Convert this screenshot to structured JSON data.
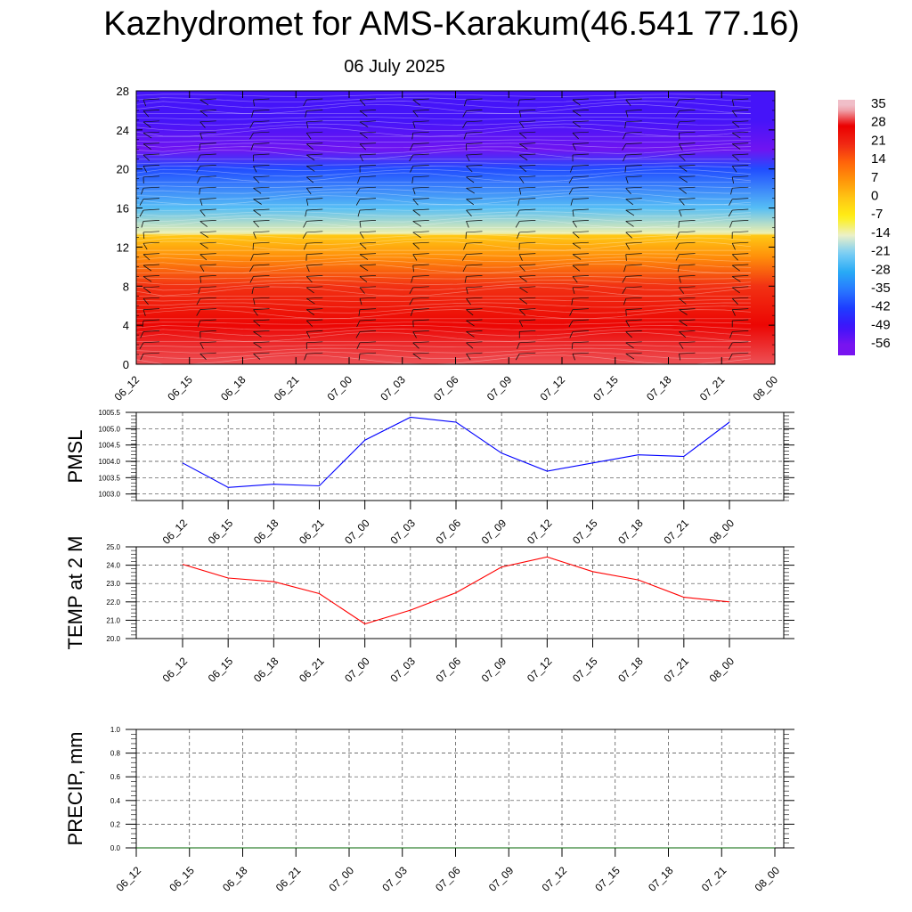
{
  "header": {
    "title": "Kazhydromet for AMS-Karakum(46.541 77.16)",
    "date": "06 July 2025"
  },
  "time_labels": [
    "06_12",
    "06_15",
    "06_18",
    "06_21",
    "07_00",
    "07_03",
    "07_06",
    "07_09",
    "07_12",
    "07_15",
    "07_18",
    "07_21",
    "08_00"
  ],
  "chart_data": [
    {
      "type": "heatmap",
      "title": "",
      "x": [
        "06_12",
        "06_15",
        "06_18",
        "06_21",
        "07_00",
        "07_03",
        "07_06",
        "07_09",
        "07_12",
        "07_15",
        "07_18",
        "07_21",
        "08_00"
      ],
      "ylim": [
        0,
        28
      ],
      "y_ticks": [
        0,
        4,
        8,
        12,
        16,
        20,
        24,
        28
      ],
      "ylabel": "",
      "description_bands": [
        {
          "y": 0,
          "value": 31
        },
        {
          "y": 4,
          "value": 27
        },
        {
          "y": 8,
          "value": 20
        },
        {
          "y": 11,
          "value": 8
        },
        {
          "y": 13.2,
          "value": 0
        },
        {
          "y": 13.4,
          "value": -13
        },
        {
          "y": 16,
          "value": -24
        },
        {
          "y": 20,
          "value": -40
        },
        {
          "y": 22,
          "value": -55
        },
        {
          "y": 25,
          "value": -50
        },
        {
          "y": 28,
          "value": -50
        }
      ],
      "wind_barbs": true,
      "colorbar": {
        "labels": [
          "35",
          "28",
          "21",
          "14",
          "7",
          "0",
          "-7",
          "-14",
          "-21",
          "-28",
          "-35",
          "-42",
          "-49",
          "-56"
        ],
        "values": [
          35,
          28,
          21,
          14,
          7,
          0,
          -7,
          -14,
          -21,
          -28,
          -35,
          -42,
          -49,
          -56
        ]
      }
    },
    {
      "type": "line",
      "ylabel": "PMSL",
      "ylim": [
        1002.8,
        1005.5
      ],
      "y_ticks": [
        "1003.0",
        "1003.5",
        "1004.0",
        "1004.5",
        "1005.0",
        "1005.5"
      ],
      "x": [
        "06_12",
        "06_15",
        "06_18",
        "06_21",
        "07_00",
        "07_03",
        "07_06",
        "07_09",
        "07_12",
        "07_15",
        "07_18",
        "07_21",
        "08_00"
      ],
      "series": [
        {
          "values": [
            1003.95,
            1003.2,
            1003.3,
            1003.25,
            1004.65,
            1005.35,
            1005.2,
            1004.25,
            1003.7,
            1003.95,
            1004.2,
            1004.15,
            1005.2
          ],
          "color": "#0000ff"
        }
      ],
      "grid": true
    },
    {
      "type": "line",
      "ylabel": "TEMP at 2 M",
      "ylim": [
        20.0,
        25.0
      ],
      "y_ticks": [
        "20.0",
        "21.0",
        "22.0",
        "23.0",
        "24.0",
        "25.0"
      ],
      "x": [
        "06_12",
        "06_15",
        "06_18",
        "06_21",
        "07_00",
        "07_03",
        "07_06",
        "07_09",
        "07_12",
        "07_15",
        "07_18",
        "07_21",
        "08_00"
      ],
      "series": [
        {
          "values": [
            24.05,
            23.3,
            23.1,
            22.45,
            20.8,
            21.55,
            22.5,
            23.9,
            24.45,
            23.65,
            23.2,
            22.25,
            22.0
          ],
          "color": "#ff0000"
        }
      ],
      "grid": true
    },
    {
      "type": "line",
      "ylabel": "PRECIP, mm",
      "ylim": [
        0.0,
        1.0
      ],
      "y_ticks": [
        "0.0",
        "0.2",
        "0.4",
        "0.6",
        "0.8",
        "1.0"
      ],
      "x": [
        "06_12",
        "06_15",
        "06_18",
        "06_21",
        "07_00",
        "07_03",
        "07_06",
        "07_09",
        "07_12",
        "07_15",
        "07_18",
        "07_21",
        "08_00"
      ],
      "series": [
        {
          "values": [
            0,
            0,
            0,
            0,
            0,
            0,
            0,
            0,
            0,
            0,
            0,
            0,
            0
          ],
          "color": "#006400"
        }
      ],
      "grid": true
    }
  ],
  "colors": {
    "pmsl_line": "#0000ff",
    "temp_line": "#ff0000",
    "precip_line": "#006400"
  }
}
